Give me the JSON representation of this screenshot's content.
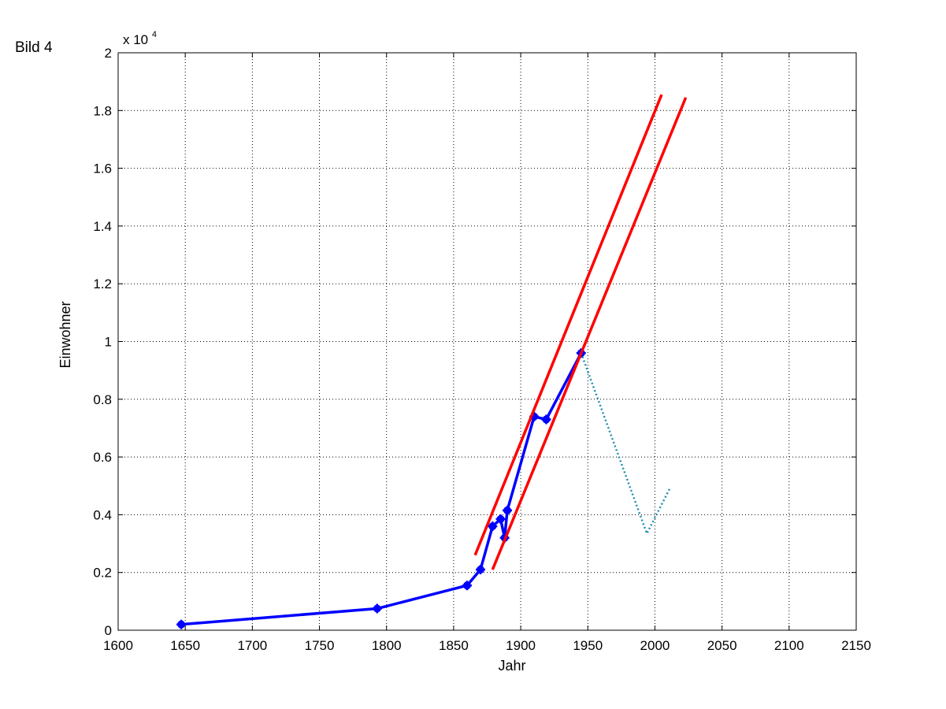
{
  "figure_label": "Bild 4",
  "chart_data": {
    "type": "line",
    "title": "",
    "xlabel": "Jahr",
    "ylabel": "Einwohner",
    "y_multiplier_base": "x 10",
    "y_multiplier_exponent": "4",
    "xlim": [
      1600,
      2150
    ],
    "ylim": [
      0,
      2
    ],
    "grid": true,
    "x_ticks": [
      1600,
      1650,
      1700,
      1750,
      1800,
      1850,
      1900,
      1950,
      2000,
      2050,
      2100,
      2150
    ],
    "y_ticks": [
      0,
      0.2,
      0.4,
      0.6,
      0.8,
      1,
      1.2,
      1.4,
      1.6,
      1.8,
      2
    ],
    "x_tick_labels": [
      "1600",
      "1650",
      "1700",
      "1750",
      "1800",
      "1850",
      "1900",
      "1950",
      "2000",
      "2050",
      "2100",
      "2150"
    ],
    "y_tick_labels": [
      "0",
      "0.2",
      "0.4",
      "0.6",
      "0.8",
      "1",
      "1.2",
      "1.4",
      "1.6",
      "1.8",
      "2"
    ],
    "series": [
      {
        "style": "solid-markers",
        "color": "#0000ff",
        "points": [
          [
            1647,
            0.02
          ],
          [
            1793,
            0.075
          ],
          [
            1860,
            0.155
          ],
          [
            1870,
            0.21
          ],
          [
            1879,
            0.36
          ],
          [
            1885,
            0.385
          ],
          [
            1888,
            0.32
          ],
          [
            1890,
            0.415
          ],
          [
            1910,
            0.74
          ],
          [
            1919,
            0.73
          ],
          [
            1945,
            0.96
          ]
        ]
      },
      {
        "style": "dotted",
        "color": "#1f8fae",
        "points": [
          [
            1945,
            0.96
          ],
          [
            1994,
            0.335
          ],
          [
            2011,
            0.49
          ]
        ]
      },
      {
        "style": "solid",
        "color": "#ff0000",
        "points": [
          [
            1866,
            0.26
          ],
          [
            2005,
            1.855
          ]
        ]
      },
      {
        "style": "solid",
        "color": "#ff0000",
        "points": [
          [
            1879,
            0.21
          ],
          [
            2023,
            1.845
          ]
        ]
      }
    ]
  }
}
